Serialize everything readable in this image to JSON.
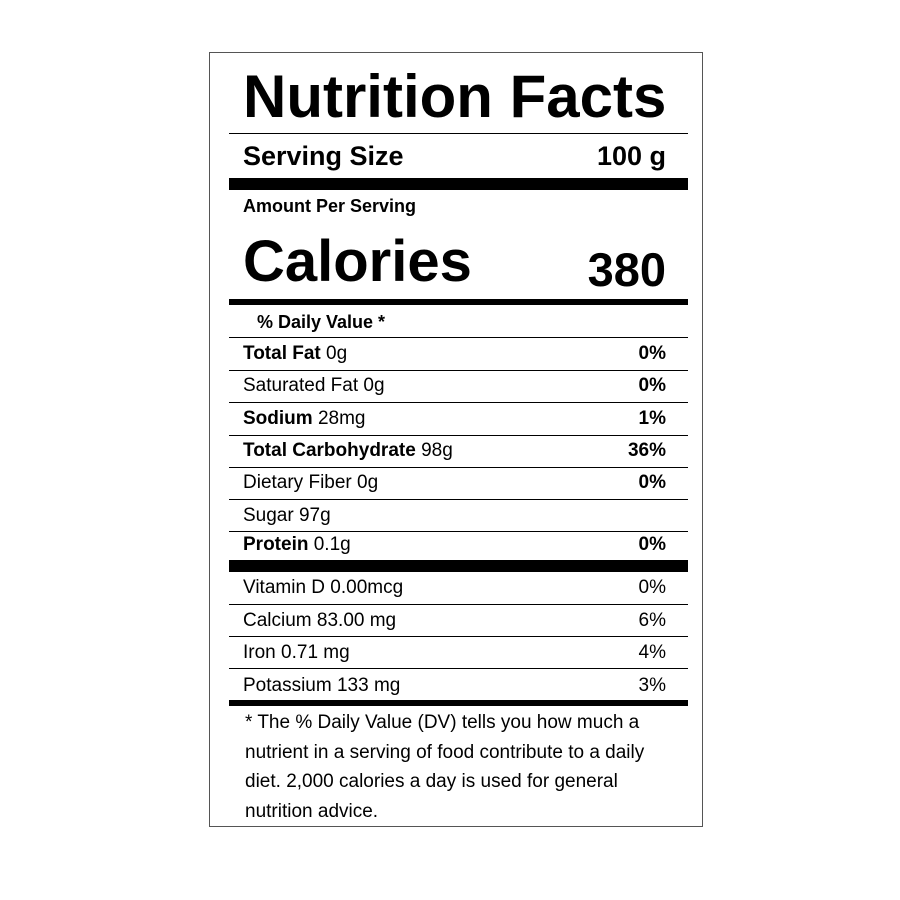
{
  "title": "Nutrition Facts",
  "serving": {
    "label": "Serving Size",
    "value": "100 g"
  },
  "amount_per_serving": "Amount Per Serving",
  "calories": {
    "label": "Calories",
    "value": "380"
  },
  "dv_header": "% Daily Value *",
  "nutrients": [
    {
      "name": "Total Fat",
      "amount": "0g",
      "dv": "0%",
      "bold": true
    },
    {
      "name": "Saturated Fat",
      "amount": "0g",
      "dv": "0%",
      "bold": false
    },
    {
      "name": "Sodium",
      "amount": "28mg",
      "dv": "1%",
      "bold": true
    },
    {
      "name": "Total Carbohydrate",
      "amount": "98g",
      "dv": "36%",
      "bold": true
    },
    {
      "name": "Dietary Fiber",
      "amount": "0g",
      "dv": "0%",
      "bold": false
    },
    {
      "name": "Sugar",
      "amount": "97g",
      "dv": "",
      "bold": false
    },
    {
      "name": "Protein",
      "amount": "0.1g",
      "dv": "0%",
      "bold": true
    }
  ],
  "vitamins": [
    {
      "name": "Vitamin D",
      "amount": "0.00mcg",
      "dv": "0%"
    },
    {
      "name": "Calcium",
      "amount": "83.00 mg",
      "dv": "6%"
    },
    {
      "name": "Iron",
      "amount": "0.71 mg",
      "dv": "4%"
    },
    {
      "name": "Potassium",
      "amount": "133 mg",
      "dv": "3%"
    }
  ],
  "footnote": [
    "* The % Daily Value (DV) tells you how much a",
    "nutrient in a serving of food contribute to a daily",
    "diet. 2,000 calories a day is used for general",
    "nutrition advice."
  ]
}
